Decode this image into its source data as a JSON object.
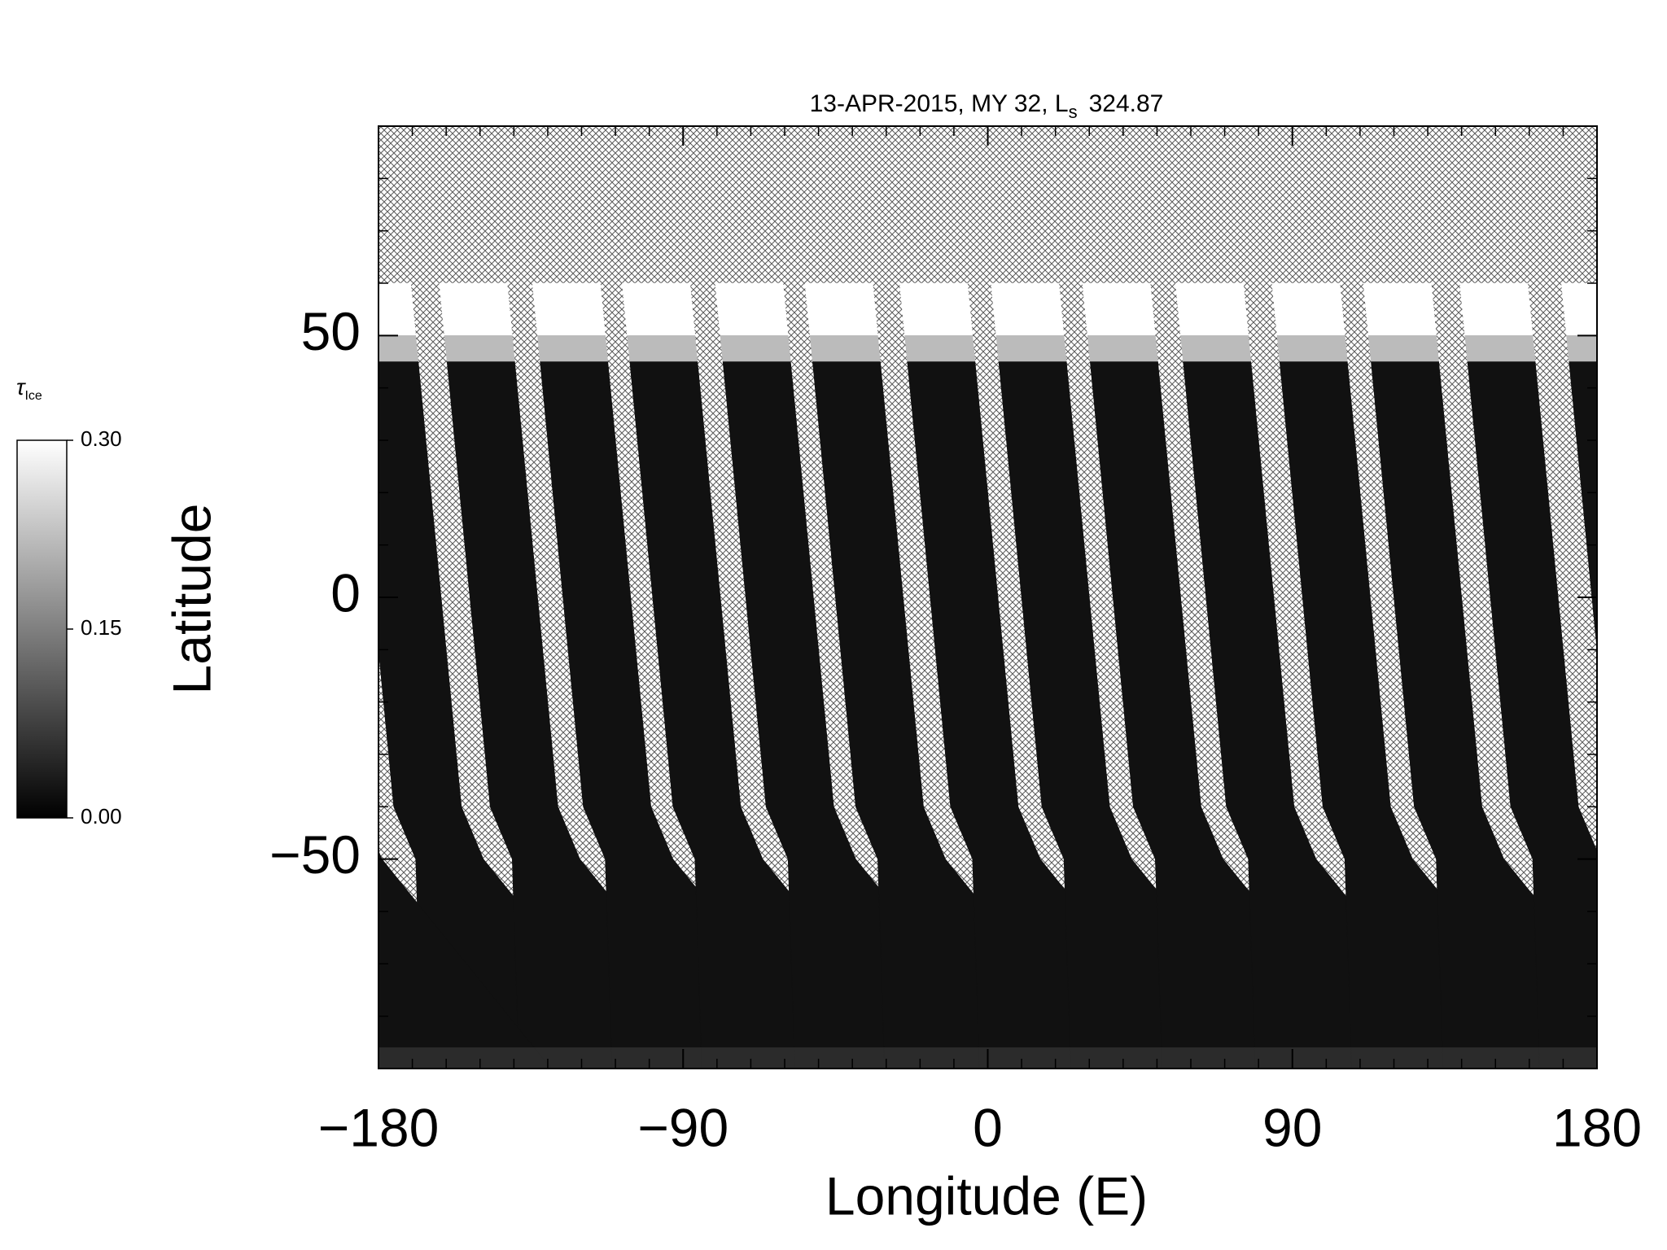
{
  "chart_data": {
    "type": "heatmap",
    "title": "13-APR-2015, MY 32,  L",
    "title_subscript": "s",
    "title_suffix": "324.87",
    "xlabel": "Longitude (E)",
    "ylabel": "Latitude",
    "xlim": [
      -180,
      180
    ],
    "ylim": [
      -90,
      90
    ],
    "xticks": [
      {
        "value": -180,
        "label": "−180"
      },
      {
        "value": -90,
        "label": "−90"
      },
      0,
      90,
      180
    ],
    "yticks": [
      {
        "value": -50,
        "label": "−50"
      },
      0,
      50
    ],
    "xminorticks": [
      -170,
      -160,
      -150,
      -140,
      -130,
      -120,
      -110,
      -100,
      -80,
      -70,
      -60,
      -50,
      -40,
      -30,
      -20,
      -10,
      10,
      20,
      30,
      40,
      50,
      60,
      70,
      80,
      100,
      110,
      120,
      130,
      140,
      150,
      160,
      170
    ],
    "yminorticks": [
      -80,
      -70,
      -60,
      -40,
      -30,
      -20,
      -10,
      10,
      20,
      30,
      40,
      60,
      70,
      80
    ],
    "swath_lons": [
      -171.5,
      -143,
      -115.5,
      -89,
      -61.5,
      -35,
      -7,
      20,
      47,
      74.5,
      103,
      130,
      158.5
    ],
    "lat_edges": [
      60,
      50,
      45,
      -86,
      -90
    ],
    "tau": [
      0.3,
      0.22,
      0.02,
      0.05
    ],
    "missing_pattern": "crosshatch",
    "colorbar": {
      "title": "τ",
      "title_subscript": "Ice",
      "range": [
        0,
        0.3
      ],
      "colors": [
        "#000000",
        "#ffffff"
      ],
      "ticks": [
        {
          "value": 0,
          "label": "0.00"
        },
        {
          "value": 0.15,
          "label": "0.15"
        },
        {
          "value": 0.3,
          "label": "0.30"
        }
      ]
    }
  }
}
